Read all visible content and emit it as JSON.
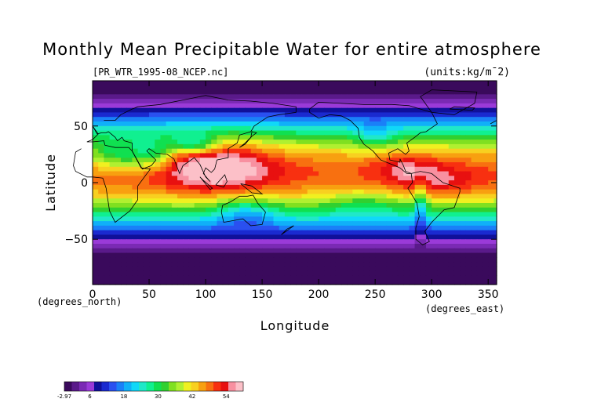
{
  "chart_data": {
    "type": "heatmap",
    "title": "Monthly Mean Precipitable Water for entire atmosphere",
    "subtitle": "[PR_WTR_1995-08_NCEP.nc]",
    "units": "(units:kg/m¯2)",
    "xlabel": "Longitude",
    "ylabel": "Latitude",
    "x_unit_label": "(degrees_east)",
    "y_unit_label": "(degrees_north)",
    "xlim": [
      0,
      357.5
    ],
    "ylim": [
      -90,
      90
    ],
    "x_ticks": [
      0,
      50,
      100,
      150,
      200,
      250,
      300,
      350
    ],
    "y_ticks": [
      50,
      0,
      -50
    ],
    "colorbar": {
      "tick_labels": [
        "-2.97",
        "6",
        "18",
        "30",
        "42",
        "54"
      ],
      "tick_values": [
        -2.97,
        6,
        18,
        30,
        42,
        54
      ],
      "range": [
        -2.97,
        60
      ],
      "colors": [
        "#3a0a5c",
        "#5a1a8a",
        "#7a2ab4",
        "#9a3ad8",
        "#10109a",
        "#1a2ad0",
        "#2a50f0",
        "#1a80f8",
        "#10b0f8",
        "#10d8f8",
        "#20e8c8",
        "#10f090",
        "#10e050",
        "#30d030",
        "#80e020",
        "#b0f030",
        "#f0f020",
        "#f8d020",
        "#f8a010",
        "#f87010",
        "#f83010",
        "#e81010",
        "#f890a0",
        "#fcc0c8"
      ]
    },
    "grid": false,
    "legend": "none"
  }
}
